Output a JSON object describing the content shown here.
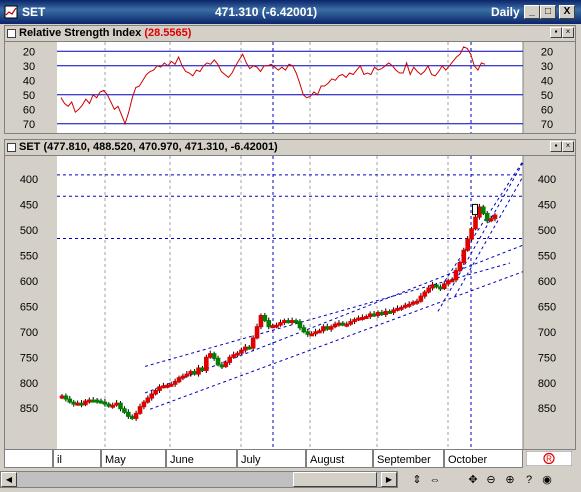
{
  "window": {
    "title": "SET",
    "price_readout": "471.310 (-6.42001)",
    "period": "Daily",
    "minimize": "_",
    "maximize": "□",
    "close": "X"
  },
  "rsi_panel": {
    "name": "Relative Strength Index",
    "value": "(28.5565)",
    "y_ticks": [
      "20",
      "30",
      "40",
      "50",
      "60",
      "70"
    ]
  },
  "price_panel": {
    "name": "SET",
    "ohlc": "(477.810, 488.520, 470.970, 471.310, -6.42001)",
    "y_ticks": [
      "400",
      "450",
      "500",
      "550",
      "600",
      "650",
      "700",
      "750",
      "800",
      "850"
    ]
  },
  "x_axis": {
    "months": [
      "il",
      "May",
      "June",
      "July",
      "August",
      "September",
      "October"
    ]
  },
  "toolbar": {
    "icons": [
      "scroll-updown-icon",
      "scroll-horizontal-icon",
      "move-icon",
      "zoom-out-icon",
      "zoom-in-icon"
    ]
  },
  "colors": {
    "up_candle": "#e00000",
    "down_candle": "#008000",
    "grid_blue": "#0000c0",
    "title_bar": "#0a246a"
  },
  "chart_data": [
    {
      "type": "line",
      "title": "Relative Strength Index",
      "series": [
        {
          "name": "Relative Strength Index",
          "values": [
            52,
            56,
            58,
            55,
            62,
            60,
            57,
            53,
            56,
            50,
            52,
            48,
            47,
            50,
            55,
            60,
            58,
            64,
            70,
            62,
            52,
            45,
            44,
            40,
            36,
            34,
            33,
            30,
            31,
            28,
            30,
            27,
            29,
            24,
            30,
            34,
            35,
            37,
            33,
            34,
            30,
            28,
            29,
            26,
            29,
            34,
            36,
            38,
            35,
            30,
            26,
            22,
            28,
            32,
            30,
            31,
            34,
            30,
            30,
            29,
            31,
            33,
            31,
            33,
            29,
            30,
            35,
            42,
            50,
            52,
            51,
            48,
            50,
            44,
            44,
            42,
            39,
            40,
            37,
            36,
            38,
            35,
            36,
            33,
            30,
            36,
            35,
            36,
            31,
            33,
            32,
            30,
            28,
            30,
            33,
            35,
            35,
            28,
            36,
            31,
            34,
            36,
            34,
            30,
            36,
            37,
            34,
            30,
            33,
            30,
            27,
            24,
            22,
            17,
            18,
            22,
            30,
            33,
            28,
            29
          ]
        }
      ],
      "ylim": [
        75,
        15
      ],
      "y_ticks": [
        20,
        30,
        40,
        50,
        60,
        70
      ],
      "reference_lines": [
        20,
        30,
        50,
        70
      ]
    },
    {
      "type": "candlestick",
      "title": "SET",
      "categories": [
        "il",
        "May",
        "June",
        "July",
        "August",
        "September",
        "October"
      ],
      "close_path": [
        826,
        832,
        838,
        842,
        840,
        843,
        836,
        834,
        834,
        836,
        838,
        842,
        846,
        844,
        840,
        851,
        858,
        866,
        870,
        860,
        847,
        838,
        830,
        822,
        815,
        808,
        806,
        805,
        803,
        798,
        790,
        787,
        783,
        778,
        783,
        771,
        776,
        750,
        743,
        752,
        765,
        768,
        760,
        750,
        745,
        742,
        736,
        730,
        732,
        712,
        690,
        668,
        678,
        690,
        688,
        687,
        682,
        678,
        681,
        678,
        680,
        692,
        700,
        705,
        704,
        700,
        698,
        690,
        695,
        690,
        685,
        683,
        686,
        685,
        680,
        676,
        673,
        672,
        670,
        665,
        668,
        662,
        666,
        660,
        662,
        657,
        654,
        652,
        648,
        646,
        642,
        640,
        630,
        622,
        614,
        608,
        612,
        615,
        606,
        600,
        598,
        580,
        564,
        540,
        518,
        498,
        475,
        455,
        468,
        482,
        478,
        471
      ],
      "ylim": [
        930,
        355
      ],
      "y_ticks": [
        400,
        450,
        500,
        550,
        600,
        650,
        700,
        750,
        800,
        850
      ]
    }
  ]
}
